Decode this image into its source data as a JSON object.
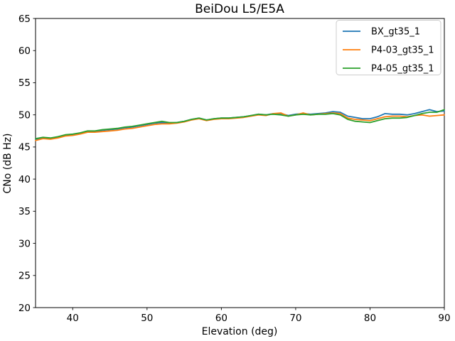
{
  "figure": {
    "background": "#ffffff",
    "frame_color": "#000000",
    "legend_border_color": "#cccccc"
  },
  "chart_data": {
    "type": "line",
    "title": "BeiDou L5/E5A",
    "xlabel": "Elevation (deg)",
    "ylabel": "CNo (dB Hz)",
    "xlim": [
      35,
      90
    ],
    "ylim": [
      20,
      65
    ],
    "xticks": [
      40,
      50,
      60,
      70,
      80,
      90
    ],
    "yticks": [
      20,
      25,
      30,
      35,
      40,
      45,
      50,
      55,
      60,
      65
    ],
    "grid": false,
    "legend_position": "upper right",
    "x": [
      35,
      36,
      37,
      38,
      39,
      40,
      41,
      42,
      43,
      44,
      45,
      46,
      47,
      48,
      49,
      50,
      51,
      52,
      53,
      54,
      55,
      56,
      57,
      58,
      59,
      60,
      61,
      62,
      63,
      64,
      65,
      66,
      67,
      68,
      69,
      70,
      71,
      72,
      73,
      74,
      75,
      76,
      77,
      78,
      79,
      80,
      81,
      82,
      83,
      84,
      85,
      86,
      87,
      88,
      89,
      90
    ],
    "series": [
      {
        "name": "BX_gt35_1",
        "color": "#1f77b4",
        "values": [
          46.2,
          46.4,
          46.3,
          46.5,
          46.8,
          46.9,
          47.1,
          47.4,
          47.4,
          47.6,
          47.7,
          47.8,
          48.0,
          48.1,
          48.3,
          48.5,
          48.7,
          48.8,
          48.7,
          48.8,
          49.0,
          49.3,
          49.5,
          49.2,
          49.4,
          49.5,
          49.5,
          49.6,
          49.7,
          49.9,
          50.1,
          50.0,
          50.2,
          50.2,
          49.9,
          50.1,
          50.2,
          50.1,
          50.2,
          50.3,
          50.5,
          50.4,
          49.8,
          49.6,
          49.4,
          49.4,
          49.7,
          50.2,
          50.1,
          50.1,
          50.0,
          50.2,
          50.5,
          50.8,
          50.5,
          50.6
        ]
      },
      {
        "name": "P4-03_gt35_1",
        "color": "#ff7f0e",
        "values": [
          46.0,
          46.3,
          46.2,
          46.4,
          46.7,
          46.8,
          47.0,
          47.3,
          47.3,
          47.4,
          47.5,
          47.6,
          47.8,
          47.9,
          48.1,
          48.3,
          48.5,
          48.6,
          48.6,
          48.7,
          48.9,
          49.2,
          49.4,
          49.1,
          49.3,
          49.4,
          49.4,
          49.5,
          49.6,
          49.8,
          50.0,
          49.9,
          50.2,
          50.3,
          49.8,
          50.0,
          50.3,
          50.0,
          50.1,
          50.2,
          50.3,
          50.2,
          49.5,
          49.3,
          49.2,
          49.1,
          49.4,
          49.7,
          49.8,
          49.8,
          49.7,
          49.9,
          50.0,
          49.8,
          49.9,
          50.0
        ]
      },
      {
        "name": "P4-05_gt35_1",
        "color": "#2ca02c",
        "values": [
          46.3,
          46.5,
          46.4,
          46.6,
          46.9,
          47.0,
          47.2,
          47.5,
          47.5,
          47.7,
          47.8,
          47.9,
          48.1,
          48.2,
          48.4,
          48.6,
          48.8,
          49.0,
          48.8,
          48.8,
          49.0,
          49.3,
          49.5,
          49.2,
          49.4,
          49.5,
          49.5,
          49.6,
          49.7,
          49.9,
          50.1,
          50.0,
          50.1,
          50.0,
          49.8,
          50.0,
          50.1,
          50.0,
          50.1,
          50.1,
          50.2,
          50.0,
          49.3,
          49.0,
          48.9,
          48.8,
          49.1,
          49.4,
          49.5,
          49.5,
          49.6,
          49.9,
          50.2,
          50.4,
          50.4,
          50.8
        ]
      }
    ]
  }
}
